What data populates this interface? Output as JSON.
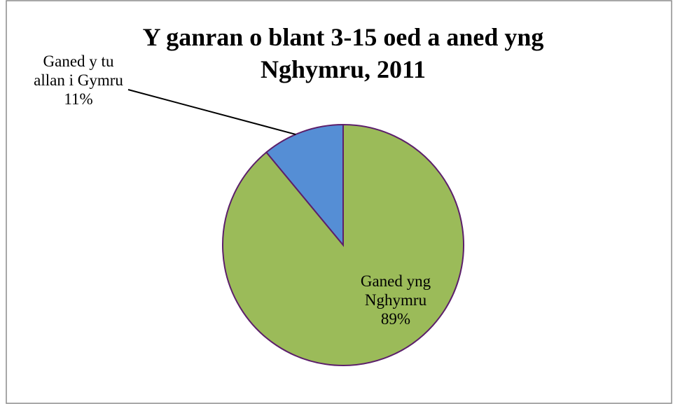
{
  "chart_data": {
    "type": "pie",
    "title": "Y ganran o blant 3-15 oed a aned yng Nghymru, 2011",
    "categories": [
      "Ganed yng Nghymru",
      "Ganed y tu allan i Gymru"
    ],
    "values": [
      89,
      11
    ],
    "value_labels": [
      "89%",
      "11%"
    ],
    "colors": [
      "#9bbb59",
      "#558ed5"
    ]
  }
}
